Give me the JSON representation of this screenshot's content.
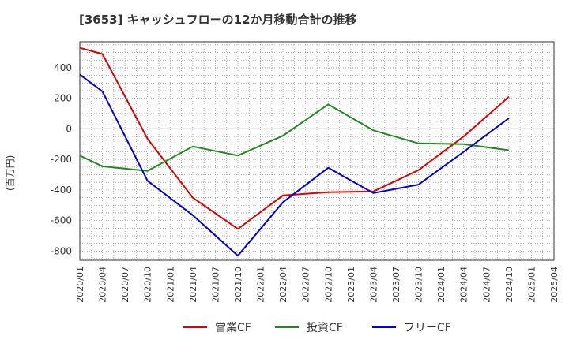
{
  "title": "[3653]  キャッシュフローの12か月移動合計の推移",
  "chart_data": {
    "type": "line",
    "title": "[3653]  キャッシュフローの12か月移動合計の推移",
    "ylabel": "(百万円)",
    "xlabel": "",
    "categories": [
      "2020/01",
      "2020/04",
      "2020/07",
      "2020/10",
      "2021/01",
      "2021/04",
      "2021/07",
      "2021/10",
      "2022/01",
      "2022/04",
      "2022/07",
      "2022/10",
      "2023/01",
      "2023/04",
      "2023/07",
      "2023/10",
      "2024/01",
      "2024/04",
      "2024/07",
      "2024/10",
      "2025/01",
      "2025/04"
    ],
    "yticks": [
      400,
      200,
      0,
      -200,
      -400,
      -600,
      -800
    ],
    "ylim": [
      -860,
      570
    ],
    "grid": true,
    "legend_position": "bottom",
    "series": [
      {
        "name": "営業CF",
        "color": "#dd0000",
        "x": [
          "2020/01",
          "2020/04",
          "2020/10",
          "2021/04",
          "2021/10",
          "2022/04",
          "2022/10",
          "2023/04",
          "2023/10",
          "2024/04",
          "2024/10"
        ],
        "values": [
          530,
          490,
          -65,
          -450,
          -655,
          -435,
          -415,
          -410,
          -270,
          -50,
          210
        ]
      },
      {
        "name": "投資CF",
        "color": "#228822",
        "x": [
          "2020/01",
          "2020/04",
          "2020/10",
          "2021/04",
          "2021/10",
          "2022/04",
          "2022/10",
          "2023/04",
          "2023/10",
          "2024/04",
          "2024/10"
        ],
        "values": [
          -175,
          -245,
          -275,
          -115,
          -175,
          -45,
          160,
          -10,
          -95,
          -100,
          -140
        ]
      },
      {
        "name": "フリーCF",
        "color": "#0000dd",
        "x": [
          "2020/01",
          "2020/04",
          "2020/10",
          "2021/04",
          "2021/10",
          "2022/04",
          "2022/10",
          "2023/04",
          "2023/10",
          "2024/04",
          "2024/10"
        ],
        "values": [
          355,
          245,
          -340,
          -565,
          -830,
          -480,
          -255,
          -420,
          -365,
          -150,
          70
        ]
      }
    ]
  }
}
